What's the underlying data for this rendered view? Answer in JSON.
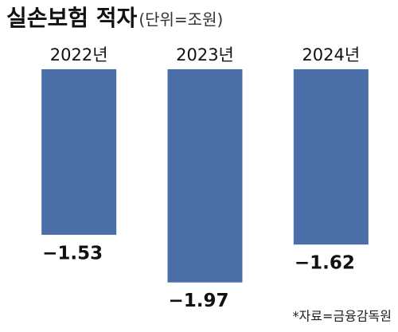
{
  "chart_data": {
    "type": "bar",
    "title": "실손보험 적자",
    "subtitle": "(단위=조원)",
    "categories": [
      "2022년",
      "2023년",
      "2024년"
    ],
    "values": [
      -1.53,
      -1.97,
      -1.62
    ],
    "value_labels": [
      "−1.53",
      "−1.97",
      "−1.62"
    ],
    "color": "#4a6fa8",
    "ylim": [
      -2.2,
      0
    ],
    "source": "*자료=금융감독원"
  }
}
